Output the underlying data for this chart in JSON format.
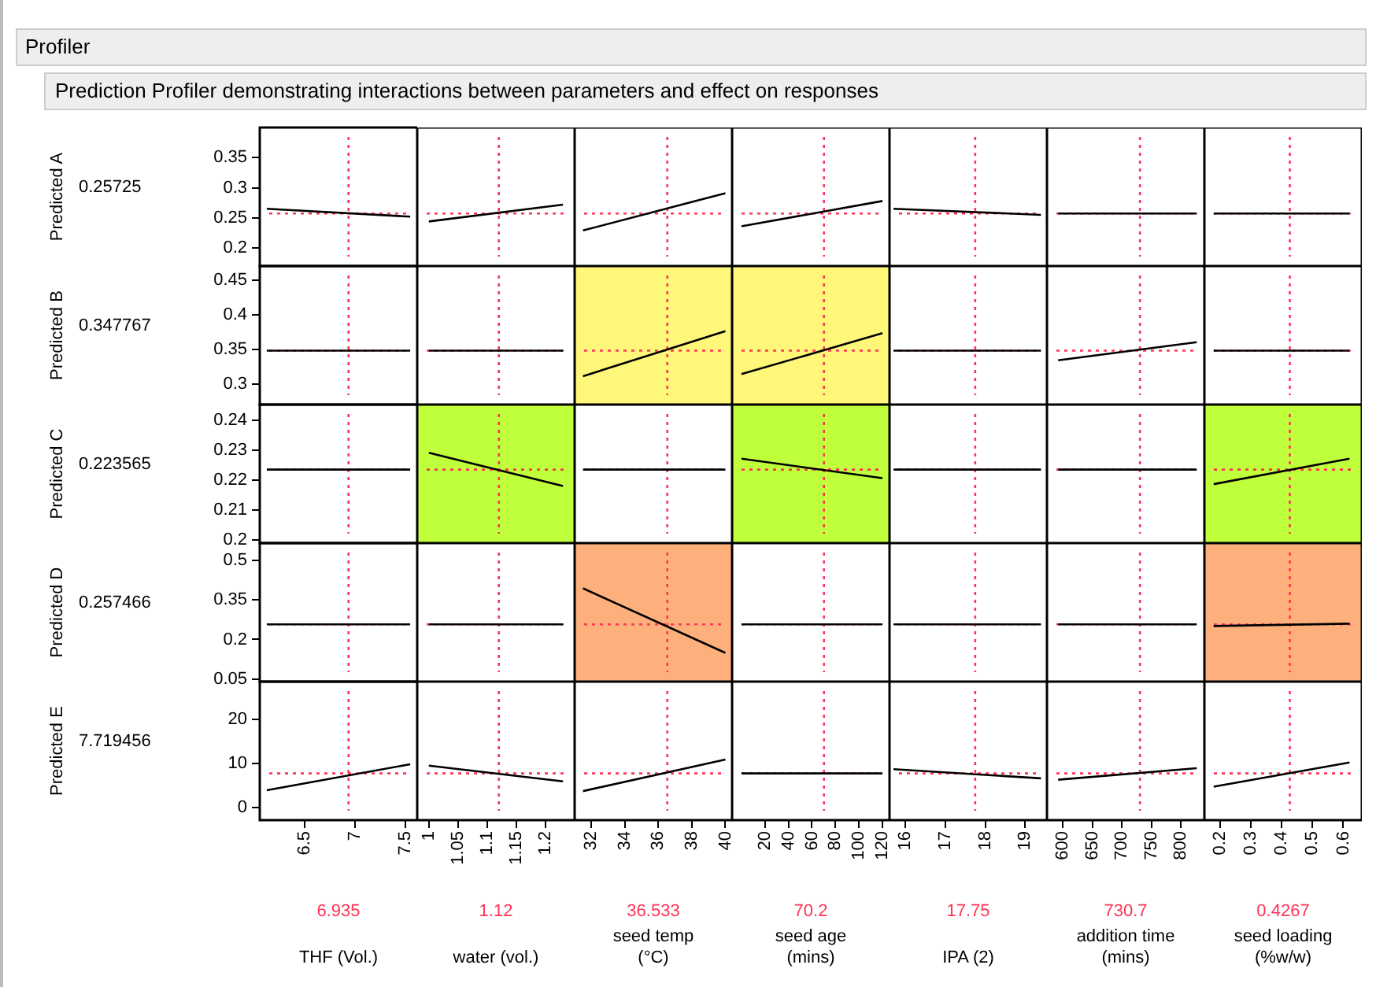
{
  "chart_data": [
    {
      "type": "other",
      "title": "Profiler",
      "subtitle": "Prediction Profiler demonstrating interactions between parameters and effect on responses"
    },
    {
      "type": "line",
      "x": [
        6.12,
        7.55
      ],
      "series": [
        {
          "color": "#000000",
          "values": [
            0.265,
            0.252
          ]
        }
      ],
      "xlim": [
        6.05,
        7.62
      ],
      "xticks": [
        6.5,
        7,
        7.5
      ],
      "ylim": [
        0.17,
        0.4
      ],
      "yticks": [
        0.2,
        0.25,
        0.3,
        0.35
      ],
      "ylabel": "Predicted A",
      "annotations": [
        "0.25725"
      ],
      "ref_lines": [
        {
          "axis": "x",
          "value": 6.935,
          "label": null,
          "color": "#ff3355",
          "line_style": "dotted"
        },
        {
          "axis": "y",
          "value": 0.25725,
          "label": null,
          "color": "#ff3355",
          "line_style": "dotted"
        }
      ],
      "marker": "none",
      "grid": false,
      "tick_labels": "y"
    },
    {
      "type": "line",
      "x": [
        1,
        1.23
      ],
      "series": [
        {
          "color": "#000000",
          "values": [
            0.244,
            0.272
          ]
        }
      ],
      "xlim": [
        0.98,
        1.25
      ],
      "xticks": [
        1,
        1.05,
        1.1,
        1.15,
        1.2
      ],
      "ylim": [
        0.17,
        0.4
      ],
      "yticks": [
        0.2,
        0.25,
        0.3,
        0.35
      ],
      "ref_lines": [
        {
          "axis": "x",
          "value": 1.12,
          "label": null,
          "color": "#ff3355",
          "line_style": "dotted"
        },
        {
          "axis": "y",
          "value": 0.25725,
          "label": null,
          "color": "#ff3355",
          "line_style": "dotted"
        }
      ],
      "marker": "none",
      "grid": false,
      "tick_labels": false
    },
    {
      "type": "line",
      "x": [
        31.5,
        40
      ],
      "series": [
        {
          "color": "#000000",
          "values": [
            0.229,
            0.291
          ]
        }
      ],
      "xlim": [
        31,
        40.4
      ],
      "xticks": [
        32,
        34,
        36,
        38,
        40
      ],
      "ylim": [
        0.17,
        0.4
      ],
      "yticks": [
        0.2,
        0.25,
        0.3,
        0.35
      ],
      "ref_lines": [
        {
          "axis": "x",
          "value": 36.533,
          "label": null,
          "color": "#ff3355",
          "line_style": "dotted"
        },
        {
          "axis": "y",
          "value": 0.25725,
          "label": null,
          "color": "#ff3355",
          "line_style": "dotted"
        }
      ],
      "marker": "none",
      "grid": false,
      "tick_labels": false
    },
    {
      "type": "line",
      "x": [
        0,
        120
      ],
      "series": [
        {
          "color": "#000000",
          "values": [
            0.236,
            0.278
          ]
        }
      ],
      "xlim": [
        -8,
        126
      ],
      "xticks": [
        20,
        40,
        60,
        80,
        100,
        120
      ],
      "ylim": [
        0.17,
        0.4
      ],
      "yticks": [
        0.2,
        0.25,
        0.3,
        0.35
      ],
      "ref_lines": [
        {
          "axis": "x",
          "value": 70.2,
          "label": null,
          "color": "#ff3355",
          "line_style": "dotted"
        },
        {
          "axis": "y",
          "value": 0.25725,
          "label": null,
          "color": "#ff3355",
          "line_style": "dotted"
        }
      ],
      "marker": "none",
      "grid": false,
      "tick_labels": false
    },
    {
      "type": "line",
      "x": [
        15.7,
        19.4
      ],
      "series": [
        {
          "color": "#000000",
          "values": [
            0.265,
            0.255
          ]
        }
      ],
      "xlim": [
        15.6,
        19.55
      ],
      "xticks": [
        16,
        17,
        18,
        19
      ],
      "ylim": [
        0.17,
        0.4
      ],
      "yticks": [
        0.2,
        0.25,
        0.3,
        0.35
      ],
      "ref_lines": [
        {
          "axis": "x",
          "value": 17.75,
          "label": null,
          "color": "#ff3355",
          "line_style": "dotted"
        },
        {
          "axis": "y",
          "value": 0.25725,
          "label": null,
          "color": "#ff3355",
          "line_style": "dotted"
        }
      ],
      "marker": "none",
      "grid": false,
      "tick_labels": false
    },
    {
      "type": "line",
      "x": [
        592,
        827
      ],
      "series": [
        {
          "color": "#000000",
          "values": [
            0.25725,
            0.25725
          ]
        }
      ],
      "xlim": [
        573,
        840
      ],
      "xticks": [
        600,
        650,
        700,
        750,
        800
      ],
      "ylim": [
        0.17,
        0.4
      ],
      "yticks": [
        0.2,
        0.25,
        0.3,
        0.35
      ],
      "ref_lines": [
        {
          "axis": "x",
          "value": 730.7,
          "label": null,
          "color": "#ff3355",
          "line_style": "dotted"
        },
        {
          "axis": "y",
          "value": 0.25725,
          "label": null,
          "color": "#ff3355",
          "line_style": "dotted"
        }
      ],
      "marker": "none",
      "grid": false,
      "tick_labels": false
    },
    {
      "type": "line",
      "x": [
        0.18,
        0.62
      ],
      "series": [
        {
          "color": "#000000",
          "values": [
            0.25725,
            0.25725
          ]
        }
      ],
      "xlim": [
        0.15,
        0.66
      ],
      "xticks": [
        0.2,
        0.3,
        0.4,
        0.5,
        0.6
      ],
      "ylim": [
        0.17,
        0.4
      ],
      "yticks": [
        0.2,
        0.25,
        0.3,
        0.35
      ],
      "ref_lines": [
        {
          "axis": "x",
          "value": 0.4267,
          "label": null,
          "color": "#ff3355",
          "line_style": "dotted"
        },
        {
          "axis": "y",
          "value": 0.25725,
          "label": null,
          "color": "#ff3355",
          "line_style": "dotted"
        }
      ],
      "marker": "none",
      "grid": false,
      "tick_labels": false
    },
    {
      "type": "line",
      "x": [
        6.12,
        7.55
      ],
      "series": [
        {
          "color": "#000000",
          "values": [
            0.347767,
            0.347767
          ]
        }
      ],
      "xlim": [
        6.05,
        7.62
      ],
      "xticks": [
        6.5,
        7,
        7.5
      ],
      "ylim": [
        0.27,
        0.47
      ],
      "yticks": [
        0.3,
        0.35,
        0.4,
        0.45
      ],
      "ylabel": "Predicted B",
      "annotations": [
        "0.347767"
      ],
      "ref_lines": [
        {
          "axis": "x",
          "value": 6.935,
          "label": null,
          "color": "#ff3355",
          "line_style": "dotted"
        },
        {
          "axis": "y",
          "value": 0.347767,
          "label": null,
          "color": "#ff3355",
          "line_style": "dotted"
        }
      ],
      "marker": "none",
      "grid": false,
      "tick_labels": "y"
    },
    {
      "type": "line",
      "x": [
        1,
        1.23
      ],
      "series": [
        {
          "color": "#000000",
          "values": [
            0.347767,
            0.347767
          ]
        }
      ],
      "xlim": [
        0.98,
        1.25
      ],
      "xticks": [
        1,
        1.05,
        1.1,
        1.15,
        1.2
      ],
      "ylim": [
        0.27,
        0.47
      ],
      "yticks": [
        0.3,
        0.35,
        0.4,
        0.45
      ],
      "ref_lines": [
        {
          "axis": "x",
          "value": 1.12,
          "label": null,
          "color": "#ff3355",
          "line_style": "dotted"
        },
        {
          "axis": "y",
          "value": 0.347767,
          "label": null,
          "color": "#ff3355",
          "line_style": "dotted"
        }
      ],
      "marker": "none",
      "grid": false,
      "tick_labels": false
    },
    {
      "type": "line",
      "x": [
        31.5,
        40
      ],
      "series": [
        {
          "color": "#000000",
          "values": [
            0.311,
            0.376
          ]
        }
      ],
      "xlim": [
        31,
        40.4
      ],
      "xticks": [
        32,
        34,
        36,
        38,
        40
      ],
      "ylim": [
        0.27,
        0.47
      ],
      "yticks": [
        0.3,
        0.35,
        0.4,
        0.45
      ],
      "bands": [
        {
          "axis": "x",
          "from": 31,
          "to": 40.4,
          "label": null,
          "color": "#fff77a"
        }
      ],
      "ref_lines": [
        {
          "axis": "x",
          "value": 36.533,
          "label": null,
          "color": "#ff3355",
          "line_style": "dotted"
        },
        {
          "axis": "y",
          "value": 0.347767,
          "label": null,
          "color": "#ff3355",
          "line_style": "dotted"
        }
      ],
      "marker": "none",
      "grid": false,
      "tick_labels": false
    },
    {
      "type": "line",
      "x": [
        0,
        120
      ],
      "series": [
        {
          "color": "#000000",
          "values": [
            0.314,
            0.373
          ]
        }
      ],
      "xlim": [
        -8,
        126
      ],
      "xticks": [
        20,
        40,
        60,
        80,
        100,
        120
      ],
      "ylim": [
        0.27,
        0.47
      ],
      "yticks": [
        0.3,
        0.35,
        0.4,
        0.45
      ],
      "bands": [
        {
          "axis": "x",
          "from": -8,
          "to": 126,
          "label": null,
          "color": "#fff77a"
        }
      ],
      "ref_lines": [
        {
          "axis": "x",
          "value": 70.2,
          "label": null,
          "color": "#ff3355",
          "line_style": "dotted"
        },
        {
          "axis": "y",
          "value": 0.347767,
          "label": null,
          "color": "#ff3355",
          "line_style": "dotted"
        }
      ],
      "marker": "none",
      "grid": false,
      "tick_labels": false
    },
    {
      "type": "line",
      "x": [
        15.7,
        19.4
      ],
      "series": [
        {
          "color": "#000000",
          "values": [
            0.347767,
            0.347767
          ]
        }
      ],
      "xlim": [
        15.6,
        19.55
      ],
      "xticks": [
        16,
        17,
        18,
        19
      ],
      "ylim": [
        0.27,
        0.47
      ],
      "yticks": [
        0.3,
        0.35,
        0.4,
        0.45
      ],
      "ref_lines": [
        {
          "axis": "x",
          "value": 17.75,
          "label": null,
          "color": "#ff3355",
          "line_style": "dotted"
        },
        {
          "axis": "y",
          "value": 0.347767,
          "label": null,
          "color": "#ff3355",
          "line_style": "dotted"
        }
      ],
      "marker": "none",
      "grid": false,
      "tick_labels": false
    },
    {
      "type": "line",
      "x": [
        592,
        827
      ],
      "series": [
        {
          "color": "#000000",
          "values": [
            0.334,
            0.36
          ]
        }
      ],
      "xlim": [
        573,
        840
      ],
      "xticks": [
        600,
        650,
        700,
        750,
        800
      ],
      "ylim": [
        0.27,
        0.47
      ],
      "yticks": [
        0.3,
        0.35,
        0.4,
        0.45
      ],
      "ref_lines": [
        {
          "axis": "x",
          "value": 730.7,
          "label": null,
          "color": "#ff3355",
          "line_style": "dotted"
        },
        {
          "axis": "y",
          "value": 0.347767,
          "label": null,
          "color": "#ff3355",
          "line_style": "dotted"
        }
      ],
      "marker": "none",
      "grid": false,
      "tick_labels": false
    },
    {
      "type": "line",
      "x": [
        0.18,
        0.62
      ],
      "series": [
        {
          "color": "#000000",
          "values": [
            0.347767,
            0.347767
          ]
        }
      ],
      "xlim": [
        0.15,
        0.66
      ],
      "xticks": [
        0.2,
        0.3,
        0.4,
        0.5,
        0.6
      ],
      "ylim": [
        0.27,
        0.47
      ],
      "yticks": [
        0.3,
        0.35,
        0.4,
        0.45
      ],
      "ref_lines": [
        {
          "axis": "x",
          "value": 0.4267,
          "label": null,
          "color": "#ff3355",
          "line_style": "dotted"
        },
        {
          "axis": "y",
          "value": 0.347767,
          "label": null,
          "color": "#ff3355",
          "line_style": "dotted"
        }
      ],
      "marker": "none",
      "grid": false,
      "tick_labels": false
    },
    {
      "type": "line",
      "x": [
        6.12,
        7.55
      ],
      "series": [
        {
          "color": "#000000",
          "values": [
            0.223565,
            0.223565
          ]
        }
      ],
      "xlim": [
        6.05,
        7.62
      ],
      "xticks": [
        6.5,
        7,
        7.5
      ],
      "ylim": [
        0.199,
        0.2453
      ],
      "yticks": [
        0.2,
        0.21,
        0.22,
        0.23,
        0.24
      ],
      "ylabel": "Predicted C",
      "annotations": [
        "0.223565"
      ],
      "ref_lines": [
        {
          "axis": "x",
          "value": 6.935,
          "label": null,
          "color": "#ff3355",
          "line_style": "dotted"
        },
        {
          "axis": "y",
          "value": 0.223565,
          "label": null,
          "color": "#ff3355",
          "line_style": "dotted"
        }
      ],
      "marker": "none",
      "grid": false,
      "tick_labels": "y"
    },
    {
      "type": "line",
      "x": [
        1,
        1.23
      ],
      "series": [
        {
          "color": "#000000",
          "values": [
            0.2292,
            0.2181
          ]
        }
      ],
      "xlim": [
        0.98,
        1.25
      ],
      "xticks": [
        1,
        1.05,
        1.1,
        1.15,
        1.2
      ],
      "ylim": [
        0.199,
        0.2453
      ],
      "yticks": [
        0.2,
        0.21,
        0.22,
        0.23,
        0.24
      ],
      "bands": [
        {
          "axis": "x",
          "from": 0.98,
          "to": 1.25,
          "label": null,
          "color": "#c0ff3c"
        }
      ],
      "ref_lines": [
        {
          "axis": "x",
          "value": 1.12,
          "label": null,
          "color": "#ff3355",
          "line_style": "dotted"
        },
        {
          "axis": "y",
          "value": 0.223565,
          "label": null,
          "color": "#ff3355",
          "line_style": "dotted"
        }
      ],
      "marker": "none",
      "grid": false,
      "tick_labels": false
    },
    {
      "type": "line",
      "x": [
        31.5,
        40
      ],
      "series": [
        {
          "color": "#000000",
          "values": [
            0.223565,
            0.223565
          ]
        }
      ],
      "xlim": [
        31,
        40.4
      ],
      "xticks": [
        32,
        34,
        36,
        38,
        40
      ],
      "ylim": [
        0.199,
        0.2453
      ],
      "yticks": [
        0.2,
        0.21,
        0.22,
        0.23,
        0.24
      ],
      "ref_lines": [
        {
          "axis": "x",
          "value": 36.533,
          "label": null,
          "color": "#ff3355",
          "line_style": "dotted"
        },
        {
          "axis": "y",
          "value": 0.223565,
          "label": null,
          "color": "#ff3355",
          "line_style": "dotted"
        }
      ],
      "marker": "none",
      "grid": false,
      "tick_labels": false
    },
    {
      "type": "line",
      "x": [
        0,
        120
      ],
      "series": [
        {
          "color": "#000000",
          "values": [
            0.2272,
            0.2207
          ]
        }
      ],
      "xlim": [
        -8,
        126
      ],
      "xticks": [
        20,
        40,
        60,
        80,
        100,
        120
      ],
      "ylim": [
        0.199,
        0.2453
      ],
      "yticks": [
        0.2,
        0.21,
        0.22,
        0.23,
        0.24
      ],
      "bands": [
        {
          "axis": "x",
          "from": -8,
          "to": 126,
          "label": null,
          "color": "#c0ff3c"
        }
      ],
      "ref_lines": [
        {
          "axis": "x",
          "value": 70.2,
          "label": null,
          "color": "#ff3355",
          "line_style": "dotted"
        },
        {
          "axis": "y",
          "value": 0.223565,
          "label": null,
          "color": "#ff3355",
          "line_style": "dotted"
        }
      ],
      "marker": "none",
      "grid": false,
      "tick_labels": false
    },
    {
      "type": "line",
      "x": [
        15.7,
        19.4
      ],
      "series": [
        {
          "color": "#000000",
          "values": [
            0.223565,
            0.223565
          ]
        }
      ],
      "xlim": [
        15.6,
        19.55
      ],
      "xticks": [
        16,
        17,
        18,
        19
      ],
      "ylim": [
        0.199,
        0.2453
      ],
      "yticks": [
        0.2,
        0.21,
        0.22,
        0.23,
        0.24
      ],
      "ref_lines": [
        {
          "axis": "x",
          "value": 17.75,
          "label": null,
          "color": "#ff3355",
          "line_style": "dotted"
        },
        {
          "axis": "y",
          "value": 0.223565,
          "label": null,
          "color": "#ff3355",
          "line_style": "dotted"
        }
      ],
      "marker": "none",
      "grid": false,
      "tick_labels": false
    },
    {
      "type": "line",
      "x": [
        592,
        827
      ],
      "series": [
        {
          "color": "#000000",
          "values": [
            0.223565,
            0.223565
          ]
        }
      ],
      "xlim": [
        573,
        840
      ],
      "xticks": [
        600,
        650,
        700,
        750,
        800
      ],
      "ylim": [
        0.199,
        0.2453
      ],
      "yticks": [
        0.2,
        0.21,
        0.22,
        0.23,
        0.24
      ],
      "ref_lines": [
        {
          "axis": "x",
          "value": 730.7,
          "label": null,
          "color": "#ff3355",
          "line_style": "dotted"
        },
        {
          "axis": "y",
          "value": 0.223565,
          "label": null,
          "color": "#ff3355",
          "line_style": "dotted"
        }
      ],
      "marker": "none",
      "grid": false,
      "tick_labels": false
    },
    {
      "type": "line",
      "x": [
        0.18,
        0.62
      ],
      "series": [
        {
          "color": "#000000",
          "values": [
            0.2187,
            0.2272
          ]
        }
      ],
      "xlim": [
        0.15,
        0.66
      ],
      "xticks": [
        0.2,
        0.3,
        0.4,
        0.5,
        0.6
      ],
      "ylim": [
        0.199,
        0.2453
      ],
      "yticks": [
        0.2,
        0.21,
        0.22,
        0.23,
        0.24
      ],
      "bands": [
        {
          "axis": "x",
          "from": 0.15,
          "to": 0.66,
          "label": null,
          "color": "#c0ff3c"
        }
      ],
      "ref_lines": [
        {
          "axis": "x",
          "value": 0.4267,
          "label": null,
          "color": "#ff3355",
          "line_style": "dotted"
        },
        {
          "axis": "y",
          "value": 0.223565,
          "label": null,
          "color": "#ff3355",
          "line_style": "dotted"
        }
      ],
      "marker": "none",
      "grid": false,
      "tick_labels": false
    },
    {
      "type": "line",
      "x": [
        6.12,
        7.55
      ],
      "series": [
        {
          "color": "#000000",
          "values": [
            0.257466,
            0.257466
          ]
        }
      ],
      "xlim": [
        6.05,
        7.62
      ],
      "xticks": [
        6.5,
        7,
        7.5
      ],
      "ylim": [
        0.04,
        0.566
      ],
      "yticks": [
        0.05,
        0.2,
        0.35,
        0.5
      ],
      "ylabel": "Predicted D",
      "annotations": [
        "0.257466"
      ],
      "ref_lines": [
        {
          "axis": "x",
          "value": 6.935,
          "label": null,
          "color": "#ff3355",
          "line_style": "dotted"
        },
        {
          "axis": "y",
          "value": 0.257466,
          "label": null,
          "color": "#ff3355",
          "line_style": "dotted"
        }
      ],
      "marker": "none",
      "grid": false,
      "tick_labels": "y"
    },
    {
      "type": "line",
      "x": [
        1,
        1.23
      ],
      "series": [
        {
          "color": "#000000",
          "values": [
            0.257466,
            0.257466
          ]
        }
      ],
      "xlim": [
        0.98,
        1.25
      ],
      "xticks": [
        1,
        1.05,
        1.1,
        1.15,
        1.2
      ],
      "ylim": [
        0.04,
        0.566
      ],
      "yticks": [
        0.05,
        0.2,
        0.35,
        0.5
      ],
      "ref_lines": [
        {
          "axis": "x",
          "value": 1.12,
          "label": null,
          "color": "#ff3355",
          "line_style": "dotted"
        },
        {
          "axis": "y",
          "value": 0.257466,
          "label": null,
          "color": "#ff3355",
          "line_style": "dotted"
        }
      ],
      "marker": "none",
      "grid": false,
      "tick_labels": false
    },
    {
      "type": "line",
      "x": [
        31.5,
        40
      ],
      "series": [
        {
          "color": "#000000",
          "values": [
            0.394,
            0.149
          ]
        }
      ],
      "xlim": [
        31,
        40.4
      ],
      "xticks": [
        32,
        34,
        36,
        38,
        40
      ],
      "ylim": [
        0.04,
        0.566
      ],
      "yticks": [
        0.05,
        0.2,
        0.35,
        0.5
      ],
      "bands": [
        {
          "axis": "x",
          "from": 31,
          "to": 40.4,
          "label": null,
          "color": "#fdb07c"
        }
      ],
      "ref_lines": [
        {
          "axis": "x",
          "value": 36.533,
          "label": null,
          "color": "#ff3355",
          "line_style": "dotted"
        },
        {
          "axis": "y",
          "value": 0.257466,
          "label": null,
          "color": "#ff3355",
          "line_style": "dotted"
        }
      ],
      "marker": "none",
      "grid": false,
      "tick_labels": false
    },
    {
      "type": "line",
      "x": [
        0,
        120
      ],
      "series": [
        {
          "color": "#000000",
          "values": [
            0.257466,
            0.257466
          ]
        }
      ],
      "xlim": [
        -8,
        126
      ],
      "xticks": [
        20,
        40,
        60,
        80,
        100,
        120
      ],
      "ylim": [
        0.04,
        0.566
      ],
      "yticks": [
        0.05,
        0.2,
        0.35,
        0.5
      ],
      "ref_lines": [
        {
          "axis": "x",
          "value": 70.2,
          "label": null,
          "color": "#ff3355",
          "line_style": "dotted"
        },
        {
          "axis": "y",
          "value": 0.257466,
          "label": null,
          "color": "#ff3355",
          "line_style": "dotted"
        }
      ],
      "marker": "none",
      "grid": false,
      "tick_labels": false
    },
    {
      "type": "line",
      "x": [
        15.7,
        19.4
      ],
      "series": [
        {
          "color": "#000000",
          "values": [
            0.257466,
            0.257466
          ]
        }
      ],
      "xlim": [
        15.6,
        19.55
      ],
      "xticks": [
        16,
        17,
        18,
        19
      ],
      "ylim": [
        0.04,
        0.566
      ],
      "yticks": [
        0.05,
        0.2,
        0.35,
        0.5
      ],
      "ref_lines": [
        {
          "axis": "x",
          "value": 17.75,
          "label": null,
          "color": "#ff3355",
          "line_style": "dotted"
        },
        {
          "axis": "y",
          "value": 0.257466,
          "label": null,
          "color": "#ff3355",
          "line_style": "dotted"
        }
      ],
      "marker": "none",
      "grid": false,
      "tick_labels": false
    },
    {
      "type": "line",
      "x": [
        592,
        827
      ],
      "series": [
        {
          "color": "#000000",
          "values": [
            0.257466,
            0.257466
          ]
        }
      ],
      "xlim": [
        573,
        840
      ],
      "xticks": [
        600,
        650,
        700,
        750,
        800
      ],
      "ylim": [
        0.04,
        0.566
      ],
      "yticks": [
        0.05,
        0.2,
        0.35,
        0.5
      ],
      "ref_lines": [
        {
          "axis": "x",
          "value": 730.7,
          "label": null,
          "color": "#ff3355",
          "line_style": "dotted"
        },
        {
          "axis": "y",
          "value": 0.257466,
          "label": null,
          "color": "#ff3355",
          "line_style": "dotted"
        }
      ],
      "marker": "none",
      "grid": false,
      "tick_labels": false
    },
    {
      "type": "line",
      "x": [
        0.18,
        0.62
      ],
      "series": [
        {
          "color": "#000000",
          "values": [
            0.251,
            0.26
          ]
        }
      ],
      "xlim": [
        0.15,
        0.66
      ],
      "xticks": [
        0.2,
        0.3,
        0.4,
        0.5,
        0.6
      ],
      "ylim": [
        0.04,
        0.566
      ],
      "yticks": [
        0.05,
        0.2,
        0.35,
        0.5
      ],
      "bands": [
        {
          "axis": "x",
          "from": 0.15,
          "to": 0.66,
          "label": null,
          "color": "#fdb07c"
        }
      ],
      "ref_lines": [
        {
          "axis": "x",
          "value": 0.4267,
          "label": null,
          "color": "#ff3355",
          "line_style": "dotted"
        },
        {
          "axis": "y",
          "value": 0.257466,
          "label": null,
          "color": "#ff3355",
          "line_style": "dotted"
        }
      ],
      "marker": "none",
      "grid": false,
      "tick_labels": false
    },
    {
      "type": "line",
      "x": [
        6.12,
        7.55
      ],
      "series": [
        {
          "color": "#000000",
          "values": [
            3.9,
            9.8
          ]
        }
      ],
      "xlim": [
        6.05,
        7.62
      ],
      "xticks": [
        6.5,
        7,
        7.5
      ],
      "ylim": [
        -2.9,
        28.6
      ],
      "yticks": [
        0,
        10,
        20
      ],
      "ylabel": "Predicted E",
      "xlabel": "THF (Vol.)",
      "ref_lines": [
        {
          "axis": "x",
          "value": 6.935,
          "label": "6.935",
          "color": "#ff3355",
          "line_style": "dotted"
        },
        {
          "axis": "y",
          "value": 7.719456,
          "label": null,
          "color": "#ff3355",
          "line_style": "dotted"
        }
      ],
      "annotations": [
        "7.719456"
      ],
      "marker": "none",
      "grid": false
    },
    {
      "type": "line",
      "x": [
        1,
        1.23
      ],
      "series": [
        {
          "color": "#000000",
          "values": [
            9.5,
            5.9
          ]
        }
      ],
      "xlim": [
        0.98,
        1.25
      ],
      "xticks": [
        1,
        1.05,
        1.1,
        1.15,
        1.2
      ],
      "ylim": [
        -2.9,
        28.6
      ],
      "yticks": [
        0,
        10,
        20
      ],
      "xlabel": "water (vol.)",
      "ref_lines": [
        {
          "axis": "x",
          "value": 1.12,
          "label": "1.12",
          "color": "#ff3355",
          "line_style": "dotted"
        },
        {
          "axis": "y",
          "value": 7.719456,
          "label": null,
          "color": "#ff3355",
          "line_style": "dotted"
        }
      ],
      "marker": "none",
      "grid": false,
      "tick_labels": "x"
    },
    {
      "type": "line",
      "x": [
        31.5,
        40
      ],
      "series": [
        {
          "color": "#000000",
          "values": [
            3.7,
            10.9
          ]
        }
      ],
      "xlim": [
        31,
        40.4
      ],
      "xticks": [
        32,
        34,
        36,
        38,
        40
      ],
      "ylim": [
        -2.9,
        28.6
      ],
      "yticks": [
        0,
        10,
        20
      ],
      "xlabel": "seed temp (°C)",
      "ref_lines": [
        {
          "axis": "x",
          "value": 36.533,
          "label": "36.533",
          "color": "#ff3355",
          "line_style": "dotted"
        },
        {
          "axis": "y",
          "value": 7.719456,
          "label": null,
          "color": "#ff3355",
          "line_style": "dotted"
        }
      ],
      "marker": "none",
      "grid": false,
      "tick_labels": "x"
    },
    {
      "type": "line",
      "x": [
        0,
        120
      ],
      "series": [
        {
          "color": "#000000",
          "values": [
            7.719456,
            7.719456
          ]
        }
      ],
      "xlim": [
        -8,
        126
      ],
      "xticks": [
        20,
        40,
        60,
        80,
        100,
        120
      ],
      "ylim": [
        -2.9,
        28.6
      ],
      "yticks": [
        0,
        10,
        20
      ],
      "xlabel": "seed age (mins)",
      "ref_lines": [
        {
          "axis": "x",
          "value": 70.2,
          "label": "70.2",
          "color": "#ff3355",
          "line_style": "dotted"
        },
        {
          "axis": "y",
          "value": 7.719456,
          "label": null,
          "color": "#ff3355",
          "line_style": "dotted"
        }
      ],
      "marker": "none",
      "grid": false,
      "tick_labels": "x"
    },
    {
      "type": "line",
      "x": [
        15.7,
        19.4
      ],
      "series": [
        {
          "color": "#000000",
          "values": [
            8.7,
            6.6
          ]
        }
      ],
      "xlim": [
        15.6,
        19.55
      ],
      "xticks": [
        16,
        17,
        18,
        19
      ],
      "ylim": [
        -2.9,
        28.6
      ],
      "yticks": [
        0,
        10,
        20
      ],
      "xlabel": "IPA (2)",
      "ref_lines": [
        {
          "axis": "x",
          "value": 17.75,
          "label": "17.75",
          "color": "#ff3355",
          "line_style": "dotted"
        },
        {
          "axis": "y",
          "value": 7.719456,
          "label": null,
          "color": "#ff3355",
          "line_style": "dotted"
        }
      ],
      "marker": "none",
      "grid": false,
      "tick_labels": "x"
    },
    {
      "type": "line",
      "x": [
        592,
        827
      ],
      "series": [
        {
          "color": "#000000",
          "values": [
            6.3,
            8.9
          ]
        }
      ],
      "xlim": [
        573,
        840
      ],
      "xticks": [
        600,
        650,
        700,
        750,
        800
      ],
      "ylim": [
        -2.9,
        28.6
      ],
      "yticks": [
        0,
        10,
        20
      ],
      "xlabel": "addition time (mins)",
      "ref_lines": [
        {
          "axis": "x",
          "value": 730.7,
          "label": "730.7",
          "color": "#ff3355",
          "line_style": "dotted"
        },
        {
          "axis": "y",
          "value": 7.719456,
          "label": null,
          "color": "#ff3355",
          "line_style": "dotted"
        }
      ],
      "marker": "none",
      "grid": false,
      "tick_labels": "x"
    },
    {
      "type": "line",
      "x": [
        0.18,
        0.62
      ],
      "series": [
        {
          "color": "#000000",
          "values": [
            4.7,
            10.2
          ]
        }
      ],
      "xlim": [
        0.15,
        0.66
      ],
      "xticks": [
        0.2,
        0.3,
        0.4,
        0.5,
        0.6
      ],
      "ylim": [
        -2.9,
        28.6
      ],
      "yticks": [
        0,
        10,
        20
      ],
      "xlabel": "seed loading (%w/w)",
      "ref_lines": [
        {
          "axis": "x",
          "value": 0.4267,
          "label": "0.4267",
          "color": "#ff3355",
          "line_style": "dotted"
        },
        {
          "axis": "y",
          "value": 7.719456,
          "label": null,
          "color": "#ff3355",
          "line_style": "dotted"
        }
      ],
      "marker": "none",
      "grid": false,
      "tick_labels": "x"
    }
  ]
}
